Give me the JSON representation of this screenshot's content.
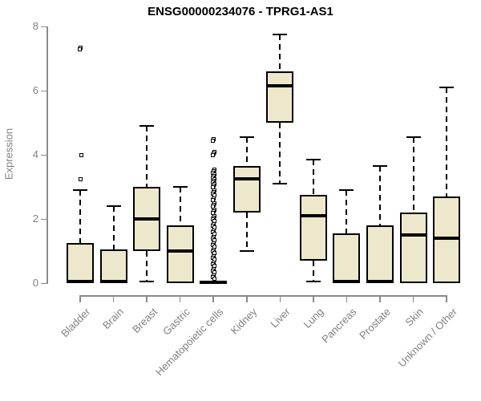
{
  "chart_data": {
    "type": "boxplot",
    "title": "ENSG00000234076 - TPRG1-AS1",
    "xlabel": "",
    "ylabel": "Expression",
    "ylim": [
      0,
      8
    ],
    "yticks": [
      0,
      2,
      4,
      6,
      8
    ],
    "grid": false,
    "box_orientation": "vertical",
    "categories": [
      "Bladder",
      "Brain",
      "Breast",
      "Gastric",
      "Hematopoietic cells",
      "Kidney",
      "Liver",
      "Lung",
      "Pancreas",
      "Prostate",
      "Skin",
      "Unknown / Other"
    ],
    "series": [
      {
        "name": "Bladder",
        "low": 0,
        "q1": 0,
        "median": 0.05,
        "q3": 1.25,
        "high": 2.9,
        "outliers": [
          7.35,
          7.3,
          4.0,
          3.25
        ]
      },
      {
        "name": "Brain",
        "low": 0,
        "q1": 0,
        "median": 0.05,
        "q3": 1.05,
        "high": 2.4,
        "outliers": []
      },
      {
        "name": "Breast",
        "low": 0.05,
        "q1": 1.0,
        "median": 2.0,
        "q3": 3.0,
        "high": 4.9,
        "outliers": []
      },
      {
        "name": "Gastric",
        "low": 0,
        "q1": 0,
        "median": 1.0,
        "q3": 1.8,
        "high": 3.0,
        "outliers": []
      },
      {
        "name": "Hematopoietic cells",
        "low": 0,
        "q1": 0,
        "median": 0.03,
        "q3": 0.07,
        "high": 0.07,
        "outliers": [
          4.5,
          4.45,
          4.1,
          4.05,
          4.0,
          3.55,
          3.5,
          3.45,
          3.4,
          3.35,
          3.3,
          3.25,
          3.2,
          3.15,
          3.1,
          3.05,
          3.0,
          2.9,
          2.85,
          2.8,
          2.75,
          2.65,
          2.6,
          2.5,
          2.45,
          2.4,
          2.3,
          2.25,
          2.2,
          2.1,
          2.05,
          2.0,
          1.95,
          1.85,
          1.8,
          1.75,
          1.65,
          1.6,
          1.55,
          1.45,
          1.4,
          1.35,
          1.25,
          1.2,
          1.15,
          1.05,
          1.0,
          0.95,
          0.85,
          0.8,
          0.75,
          0.65,
          0.6,
          0.55,
          0.45,
          0.4,
          0.35,
          0.25,
          0.2,
          0.15
        ]
      },
      {
        "name": "Kidney",
        "low": 1.0,
        "q1": 2.2,
        "median": 3.25,
        "q3": 3.65,
        "high": 4.55,
        "outliers": []
      },
      {
        "name": "Liver",
        "low": 3.1,
        "q1": 5.0,
        "median": 6.15,
        "q3": 6.6,
        "high": 7.75,
        "outliers": []
      },
      {
        "name": "Lung",
        "low": 0.05,
        "q1": 0.7,
        "median": 2.1,
        "q3": 2.75,
        "high": 3.85,
        "outliers": []
      },
      {
        "name": "Pancreas",
        "low": 0,
        "q1": 0,
        "median": 0.05,
        "q3": 1.55,
        "high": 2.9,
        "outliers": []
      },
      {
        "name": "Prostate",
        "low": 0,
        "q1": 0,
        "median": 0.05,
        "q3": 1.8,
        "high": 3.65,
        "outliers": []
      },
      {
        "name": "Skin",
        "low": 0,
        "q1": 0,
        "median": 1.5,
        "q3": 2.2,
        "high": 4.55,
        "outliers": []
      },
      {
        "name": "Unknown / Other",
        "low": 0,
        "q1": 0,
        "median": 1.4,
        "q3": 2.7,
        "high": 6.1,
        "outliers": []
      }
    ],
    "colors": {
      "box_fill": "#EDE8CC",
      "box_border": "#000000",
      "median": "#000000",
      "axis": "#898989",
      "tick_label": "#808080",
      "title": "#000000",
      "background": "#FFFFFF"
    }
  }
}
